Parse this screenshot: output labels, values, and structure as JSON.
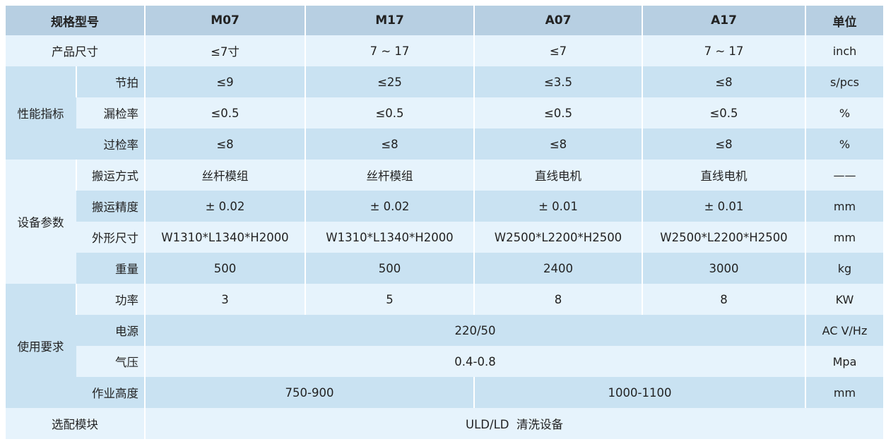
{
  "header": {
    "spec_model": "规格型号",
    "models": [
      "M07",
      "M17",
      "A07",
      "A17"
    ],
    "unit": "单位"
  },
  "rows": {
    "product_size": {
      "label": "产品尺寸",
      "values": [
        "≤7寸",
        "7 ~ 17",
        "≤7",
        "7 ~ 17"
      ],
      "unit": "inch"
    },
    "performance": {
      "group": "性能指标",
      "cycle": {
        "label": "节拍",
        "values": [
          "≤9",
          "≤25",
          "≤3.5",
          "≤8"
        ],
        "unit": "s/pcs"
      },
      "miss_rate": {
        "label": "漏检率",
        "values": [
          "≤0.5",
          "≤0.5",
          "≤0.5",
          "≤0.5"
        ],
        "unit": "%"
      },
      "over_rate": {
        "label": "过检率",
        "values": [
          "≤8",
          "≤8",
          "≤8",
          "≤8"
        ],
        "unit": "%"
      }
    },
    "equipment": {
      "group": "设备参数",
      "transport": {
        "label": "搬运方式",
        "values": [
          "丝杆模组",
          "丝杆模组",
          "直线电机",
          "直线电机"
        ],
        "unit": "——"
      },
      "precision": {
        "label": "搬运精度",
        "values": [
          "± 0.02",
          "± 0.02",
          "± 0.01",
          "± 0.01"
        ],
        "unit": "mm"
      },
      "dimensions": {
        "label": "外形尺寸",
        "values": [
          "W1310*L1340*H2000",
          "W1310*L1340*H2000",
          "W2500*L2200*H2500",
          "W2500*L2200*H2500"
        ],
        "unit": "mm"
      },
      "weight": {
        "label": "重量",
        "values": [
          "500",
          "500",
          "2400",
          "3000"
        ],
        "unit": "kg"
      }
    },
    "usage": {
      "group": "使用要求",
      "power": {
        "label": "功率",
        "values": [
          "3",
          "5",
          "8",
          "8"
        ],
        "unit": "KW"
      },
      "supply": {
        "label": "电源",
        "value": "220/50",
        "unit": "AC V/Hz"
      },
      "air": {
        "label": "气压",
        "value": "0.4-0.8",
        "unit": "Mpa"
      },
      "height": {
        "label": "作业高度",
        "values": [
          "750-900",
          "1000-1100"
        ],
        "unit": "mm"
      }
    },
    "options": {
      "label": "选配模块",
      "value": "ULD/LD  清洗设备"
    }
  },
  "colors": {
    "header": "#b7cfe2",
    "row_dark": "#c9e2f2",
    "row_light": "#e6f3fc"
  }
}
